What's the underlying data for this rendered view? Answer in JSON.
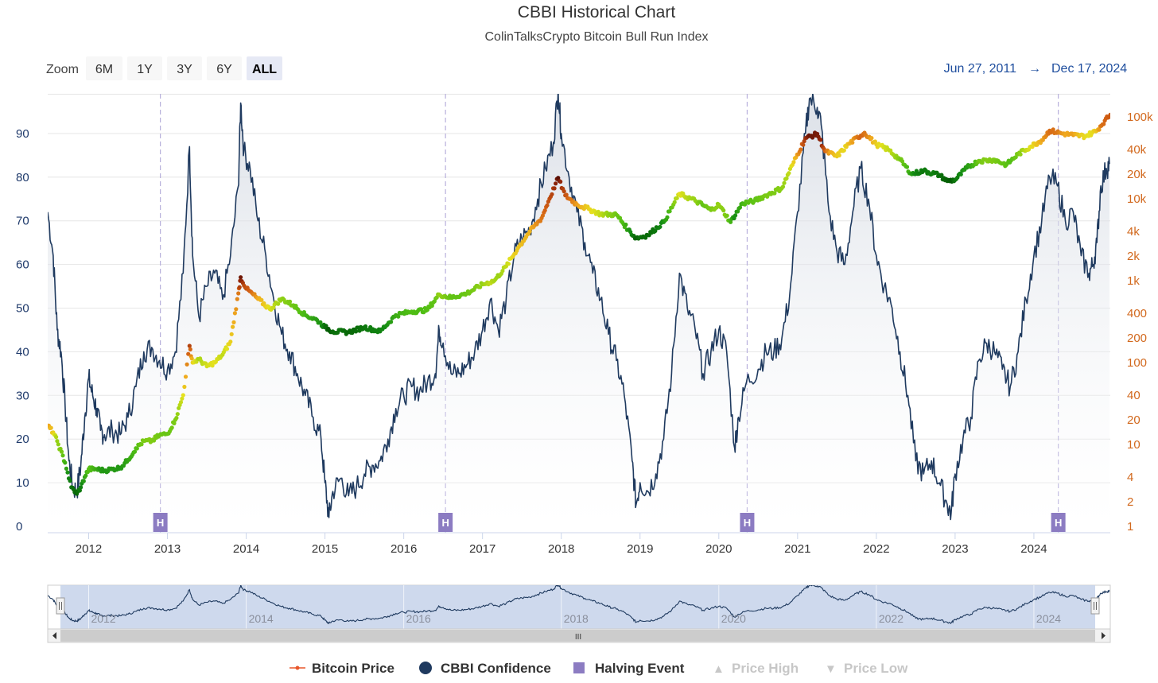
{
  "chart_data": {
    "type": "line",
    "title": "CBBI Historical Chart",
    "subtitle": "ColinTalksCrypto Bitcoin Bull Run Index",
    "zoom": {
      "label": "Zoom",
      "buttons": [
        "6M",
        "1Y",
        "3Y",
        "6Y",
        "ALL"
      ],
      "active": "ALL"
    },
    "range": {
      "from": "Jun 27, 2011",
      "arrow": "→",
      "to": "Dec 17, 2024"
    },
    "x_range": [
      2011.48,
      2024.97
    ],
    "x_ticks": [
      2012,
      2013,
      2014,
      2015,
      2016,
      2017,
      2018,
      2019,
      2020,
      2021,
      2022,
      2023,
      2024
    ],
    "y_left": {
      "label": "CBBI Confidence",
      "range": [
        0,
        100
      ],
      "ticks": [
        0,
        10,
        20,
        30,
        40,
        50,
        60,
        70,
        80,
        90
      ]
    },
    "y_right": {
      "label": "Bitcoin Price",
      "scale": "log",
      "range": [
        1,
        140000
      ],
      "ticks": [
        {
          "value": 1,
          "label": "1"
        },
        {
          "value": 2,
          "label": "2"
        },
        {
          "value": 4,
          "label": "4"
        },
        {
          "value": 10,
          "label": "10"
        },
        {
          "value": 20,
          "label": "20"
        },
        {
          "value": 40,
          "label": "40"
        },
        {
          "value": 100,
          "label": "100"
        },
        {
          "value": 200,
          "label": "200"
        },
        {
          "value": 400,
          "label": "400"
        },
        {
          "value": 1000,
          "label": "1k"
        },
        {
          "value": 2000,
          "label": "2k"
        },
        {
          "value": 4000,
          "label": "4k"
        },
        {
          "value": 10000,
          "label": "10k"
        },
        {
          "value": 20000,
          "label": "20k"
        },
        {
          "value": 40000,
          "label": "40k"
        },
        {
          "value": 100000,
          "label": "100k"
        }
      ]
    },
    "series": [
      {
        "name": "CBBI Confidence",
        "color": "#1f3a5f",
        "points": [
          [
            2011.48,
            72
          ],
          [
            2011.55,
            62
          ],
          [
            2011.6,
            45
          ],
          [
            2011.65,
            40
          ],
          [
            2011.7,
            28
          ],
          [
            2011.75,
            15
          ],
          [
            2011.8,
            9
          ],
          [
            2011.85,
            8
          ],
          [
            2011.9,
            14
          ],
          [
            2011.95,
            25
          ],
          [
            2012.0,
            34
          ],
          [
            2012.05,
            30
          ],
          [
            2012.1,
            27
          ],
          [
            2012.15,
            22
          ],
          [
            2012.2,
            21
          ],
          [
            2012.3,
            22
          ],
          [
            2012.4,
            21
          ],
          [
            2012.5,
            25
          ],
          [
            2012.6,
            32
          ],
          [
            2012.7,
            40
          ],
          [
            2012.8,
            41
          ],
          [
            2012.9,
            38
          ],
          [
            2013.0,
            36
          ],
          [
            2013.1,
            40
          ],
          [
            2013.2,
            58
          ],
          [
            2013.28,
            87
          ],
          [
            2013.32,
            62
          ],
          [
            2013.4,
            48
          ],
          [
            2013.5,
            55
          ],
          [
            2013.6,
            58
          ],
          [
            2013.7,
            52
          ],
          [
            2013.8,
            62
          ],
          [
            2013.9,
            78
          ],
          [
            2013.93,
            97
          ],
          [
            2013.97,
            86
          ],
          [
            2014.05,
            82
          ],
          [
            2014.15,
            70
          ],
          [
            2014.25,
            62
          ],
          [
            2014.35,
            52
          ],
          [
            2014.45,
            44
          ],
          [
            2014.55,
            40
          ],
          [
            2014.65,
            35
          ],
          [
            2014.75,
            30
          ],
          [
            2014.85,
            25
          ],
          [
            2014.95,
            20
          ],
          [
            2015.0,
            10
          ],
          [
            2015.05,
            2
          ],
          [
            2015.1,
            8
          ],
          [
            2015.2,
            11
          ],
          [
            2015.3,
            7
          ],
          [
            2015.4,
            9
          ],
          [
            2015.5,
            12
          ],
          [
            2015.6,
            14
          ],
          [
            2015.7,
            15
          ],
          [
            2015.8,
            20
          ],
          [
            2015.9,
            27
          ],
          [
            2016.0,
            30
          ],
          [
            2016.1,
            32
          ],
          [
            2016.2,
            31
          ],
          [
            2016.3,
            33
          ],
          [
            2016.4,
            35
          ],
          [
            2016.45,
            45
          ],
          [
            2016.5,
            42
          ],
          [
            2016.6,
            35
          ],
          [
            2016.7,
            35
          ],
          [
            2016.8,
            37
          ],
          [
            2016.9,
            40
          ],
          [
            2017.0,
            45
          ],
          [
            2017.1,
            52
          ],
          [
            2017.2,
            45
          ],
          [
            2017.3,
            52
          ],
          [
            2017.4,
            62
          ],
          [
            2017.5,
            66
          ],
          [
            2017.6,
            68
          ],
          [
            2017.7,
            75
          ],
          [
            2017.8,
            82
          ],
          [
            2017.9,
            88
          ],
          [
            2017.96,
            100
          ],
          [
            2018.0,
            90
          ],
          [
            2018.1,
            80
          ],
          [
            2018.2,
            72
          ],
          [
            2018.3,
            65
          ],
          [
            2018.4,
            58
          ],
          [
            2018.5,
            52
          ],
          [
            2018.6,
            44
          ],
          [
            2018.7,
            38
          ],
          [
            2018.8,
            30
          ],
          [
            2018.9,
            15
          ],
          [
            2018.95,
            5
          ],
          [
            2019.0,
            10
          ],
          [
            2019.1,
            8
          ],
          [
            2019.2,
            12
          ],
          [
            2019.3,
            20
          ],
          [
            2019.4,
            35
          ],
          [
            2019.5,
            58
          ],
          [
            2019.6,
            50
          ],
          [
            2019.7,
            45
          ],
          [
            2019.8,
            35
          ],
          [
            2019.9,
            40
          ],
          [
            2020.0,
            45
          ],
          [
            2020.1,
            40
          ],
          [
            2020.2,
            18
          ],
          [
            2020.25,
            25
          ],
          [
            2020.35,
            33
          ],
          [
            2020.5,
            36
          ],
          [
            2020.6,
            40
          ],
          [
            2020.7,
            40
          ],
          [
            2020.8,
            43
          ],
          [
            2020.9,
            53
          ],
          [
            2021.0,
            72
          ],
          [
            2021.1,
            90
          ],
          [
            2021.15,
            98
          ],
          [
            2021.25,
            96
          ],
          [
            2021.3,
            92
          ],
          [
            2021.4,
            72
          ],
          [
            2021.5,
            63
          ],
          [
            2021.6,
            60
          ],
          [
            2021.7,
            72
          ],
          [
            2021.8,
            82
          ],
          [
            2021.9,
            75
          ],
          [
            2022.0,
            62
          ],
          [
            2022.1,
            55
          ],
          [
            2022.2,
            50
          ],
          [
            2022.3,
            40
          ],
          [
            2022.4,
            30
          ],
          [
            2022.5,
            15
          ],
          [
            2022.6,
            12
          ],
          [
            2022.7,
            15
          ],
          [
            2022.8,
            10
          ],
          [
            2022.9,
            5
          ],
          [
            2022.95,
            3
          ],
          [
            2023.0,
            12
          ],
          [
            2023.1,
            20
          ],
          [
            2023.2,
            25
          ],
          [
            2023.3,
            38
          ],
          [
            2023.4,
            42
          ],
          [
            2023.5,
            40
          ],
          [
            2023.6,
            36
          ],
          [
            2023.7,
            32
          ],
          [
            2023.8,
            40
          ],
          [
            2023.9,
            52
          ],
          [
            2024.0,
            62
          ],
          [
            2024.1,
            70
          ],
          [
            2024.2,
            80
          ],
          [
            2024.3,
            78
          ],
          [
            2024.4,
            70
          ],
          [
            2024.5,
            72
          ],
          [
            2024.6,
            62
          ],
          [
            2024.7,
            58
          ],
          [
            2024.75,
            60
          ],
          [
            2024.8,
            65
          ],
          [
            2024.85,
            78
          ],
          [
            2024.92,
            82
          ],
          [
            2024.96,
            83
          ]
        ]
      },
      {
        "name": "Bitcoin Price",
        "points": [
          [
            2011.48,
            17
          ],
          [
            2011.55,
            14
          ],
          [
            2011.6,
            11
          ],
          [
            2011.7,
            6
          ],
          [
            2011.78,
            3
          ],
          [
            2011.85,
            2.5
          ],
          [
            2011.9,
            3
          ],
          [
            2011.95,
            4
          ],
          [
            2012.0,
            5
          ],
          [
            2012.1,
            5
          ],
          [
            2012.2,
            4.8
          ],
          [
            2012.3,
            5
          ],
          [
            2012.4,
            5.2
          ],
          [
            2012.5,
            6.5
          ],
          [
            2012.6,
            9
          ],
          [
            2012.7,
            11
          ],
          [
            2012.8,
            11
          ],
          [
            2012.9,
            13
          ],
          [
            2013.0,
            13.5
          ],
          [
            2013.1,
            20
          ],
          [
            2013.2,
            40
          ],
          [
            2013.28,
            160
          ],
          [
            2013.32,
            100
          ],
          [
            2013.4,
            110
          ],
          [
            2013.5,
            90
          ],
          [
            2013.6,
            100
          ],
          [
            2013.7,
            125
          ],
          [
            2013.8,
            180
          ],
          [
            2013.9,
            700
          ],
          [
            2013.93,
            1100
          ],
          [
            2014.0,
            800
          ],
          [
            2014.15,
            600
          ],
          [
            2014.3,
            450
          ],
          [
            2014.45,
            600
          ],
          [
            2014.6,
            500
          ],
          [
            2014.75,
            380
          ],
          [
            2014.9,
            330
          ],
          [
            2015.0,
            270
          ],
          [
            2015.1,
            240
          ],
          [
            2015.3,
            235
          ],
          [
            2015.5,
            270
          ],
          [
            2015.7,
            240
          ],
          [
            2015.9,
            380
          ],
          [
            2016.1,
            420
          ],
          [
            2016.3,
            440
          ],
          [
            2016.45,
            680
          ],
          [
            2016.6,
            620
          ],
          [
            2016.8,
            700
          ],
          [
            2017.0,
            900
          ],
          [
            2017.15,
            1000
          ],
          [
            2017.3,
            1500
          ],
          [
            2017.45,
            2500
          ],
          [
            2017.6,
            4000
          ],
          [
            2017.75,
            5800
          ],
          [
            2017.85,
            10000
          ],
          [
            2017.96,
            18000
          ],
          [
            2018.05,
            11000
          ],
          [
            2018.2,
            8500
          ],
          [
            2018.35,
            7500
          ],
          [
            2018.5,
            6500
          ],
          [
            2018.7,
            6400
          ],
          [
            2018.85,
            4200
          ],
          [
            2018.95,
            3300
          ],
          [
            2019.1,
            3600
          ],
          [
            2019.3,
            5200
          ],
          [
            2019.5,
            11500
          ],
          [
            2019.7,
            9500
          ],
          [
            2019.9,
            7300
          ],
          [
            2020.0,
            8500
          ],
          [
            2020.15,
            5200
          ],
          [
            2020.3,
            8800
          ],
          [
            2020.45,
            9400
          ],
          [
            2020.6,
            11000
          ],
          [
            2020.8,
            13500
          ],
          [
            2020.95,
            28000
          ],
          [
            2021.1,
            55000
          ],
          [
            2021.25,
            62000
          ],
          [
            2021.35,
            38000
          ],
          [
            2021.5,
            33000
          ],
          [
            2021.65,
            47000
          ],
          [
            2021.85,
            64000
          ],
          [
            2022.0,
            46000
          ],
          [
            2022.15,
            40000
          ],
          [
            2022.3,
            30000
          ],
          [
            2022.45,
            20000
          ],
          [
            2022.6,
            22000
          ],
          [
            2022.8,
            19500
          ],
          [
            2022.9,
            16500
          ],
          [
            2023.0,
            17000
          ],
          [
            2023.15,
            24000
          ],
          [
            2023.3,
            29000
          ],
          [
            2023.5,
            30000
          ],
          [
            2023.65,
            26000
          ],
          [
            2023.8,
            35000
          ],
          [
            2023.95,
            43000
          ],
          [
            2024.1,
            52000
          ],
          [
            2024.2,
            68000
          ],
          [
            2024.35,
            63000
          ],
          [
            2024.5,
            60000
          ],
          [
            2024.65,
            58000
          ],
          [
            2024.8,
            68000
          ],
          [
            2024.9,
            90000
          ],
          [
            2024.97,
            106000
          ]
        ]
      }
    ],
    "halving_events": [
      {
        "x": 2012.91,
        "label": "H"
      },
      {
        "x": 2016.53,
        "label": "H"
      },
      {
        "x": 2020.36,
        "label": "H"
      },
      {
        "x": 2024.31,
        "label": "H"
      }
    ],
    "navigator": {
      "x_ticks": [
        2012,
        2014,
        2016,
        2018,
        2020,
        2022,
        2024
      ],
      "handle_glyph": "III"
    },
    "legend": [
      {
        "name": "Bitcoin Price",
        "enabled": true,
        "symbol": "line-dot",
        "color": "#e8572a"
      },
      {
        "name": "CBBI Confidence",
        "enabled": true,
        "symbol": "circle",
        "color": "#1f3a5f"
      },
      {
        "name": "Halving Event",
        "enabled": true,
        "symbol": "square",
        "color": "#8c7cc2"
      },
      {
        "name": "Price High",
        "enabled": false,
        "symbol": "▲",
        "color": "#c7c7c7"
      },
      {
        "name": "Price Low",
        "enabled": false,
        "symbol": "▼",
        "color": "#c7c7c7"
      }
    ],
    "colors": {
      "cbbi_line": "#1f3a5f",
      "area_top": "#cfd5df",
      "grid": "#e6e6e6",
      "right_axis": "#d2691e",
      "halving": "#8c7cc2",
      "navigator_mask": "#c6d2ea"
    }
  }
}
